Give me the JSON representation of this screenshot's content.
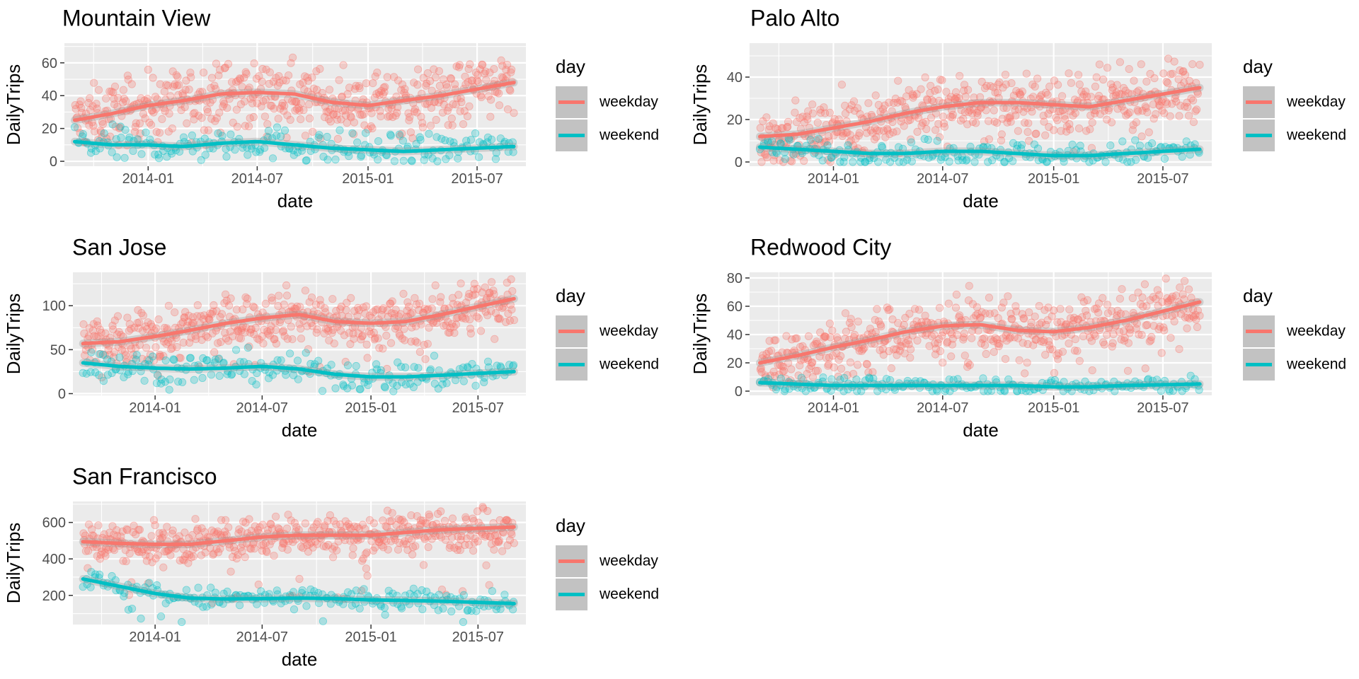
{
  "chart_data": [
    {
      "type": "scatter",
      "title": "Mountain View",
      "xlabel": "date",
      "ylabel": "DailyTrips",
      "xlim": [
        "2013-08-15",
        "2015-09-20"
      ],
      "ylim": [
        -3,
        72
      ],
      "x_ticks": [
        "2014-01",
        "2014-07",
        "2015-01",
        "2015-07"
      ],
      "y_ticks": [
        0,
        20,
        40,
        60
      ],
      "grid": true,
      "legend": {
        "title": "day",
        "position": "right",
        "entries": [
          "weekday",
          "weekend"
        ]
      },
      "series": [
        {
          "name": "weekday",
          "color": "#F8766D",
          "smooth": [
            [
              "2013-09-01",
              25
            ],
            [
              "2013-11-01",
              29
            ],
            [
              "2014-01-01",
              34
            ],
            [
              "2014-03-01",
              37
            ],
            [
              "2014-05-01",
              41
            ],
            [
              "2014-07-01",
              42
            ],
            [
              "2014-09-01",
              41
            ],
            [
              "2014-11-01",
              36
            ],
            [
              "2015-01-01",
              34
            ],
            [
              "2015-03-01",
              37
            ],
            [
              "2015-05-01",
              40
            ],
            [
              "2015-08-31",
              48
            ]
          ],
          "spread": 9,
          "max": 70
        },
        {
          "name": "weekend",
          "color": "#00BFC4",
          "smooth": [
            [
              "2013-09-01",
              12
            ],
            [
              "2013-11-01",
              10
            ],
            [
              "2014-01-01",
              10
            ],
            [
              "2014-03-01",
              9
            ],
            [
              "2014-05-01",
              11
            ],
            [
              "2014-07-01",
              12
            ],
            [
              "2014-09-01",
              10
            ],
            [
              "2014-11-01",
              8
            ],
            [
              "2015-01-01",
              7
            ],
            [
              "2015-03-01",
              6
            ],
            [
              "2015-05-01",
              7
            ],
            [
              "2015-08-31",
              9
            ]
          ],
          "spread": 5,
          "max": 27
        }
      ]
    },
    {
      "type": "scatter",
      "title": "Palo Alto",
      "xlabel": "date",
      "ylabel": "DailyTrips",
      "xlim": [
        "2013-08-15",
        "2015-09-20"
      ],
      "ylim": [
        -2,
        56
      ],
      "x_ticks": [
        "2014-01",
        "2014-07",
        "2015-01",
        "2015-07"
      ],
      "y_ticks": [
        0,
        20,
        40
      ],
      "grid": true,
      "legend": {
        "title": "day",
        "position": "right",
        "entries": [
          "weekday",
          "weekend"
        ]
      },
      "series": [
        {
          "name": "weekday",
          "color": "#F8766D",
          "smooth": [
            [
              "2013-09-01",
              12
            ],
            [
              "2013-11-01",
              13
            ],
            [
              "2014-01-01",
              16
            ],
            [
              "2014-03-01",
              19
            ],
            [
              "2014-05-01",
              23
            ],
            [
              "2014-07-01",
              26
            ],
            [
              "2014-09-01",
              28
            ],
            [
              "2014-11-01",
              28
            ],
            [
              "2015-01-01",
              27
            ],
            [
              "2015-03-01",
              26
            ],
            [
              "2015-05-01",
              29
            ],
            [
              "2015-08-31",
              35
            ]
          ],
          "spread": 7,
          "max": 54
        },
        {
          "name": "weekend",
          "color": "#00BFC4",
          "smooth": [
            [
              "2013-09-01",
              7
            ],
            [
              "2013-11-01",
              6
            ],
            [
              "2014-01-01",
              5
            ],
            [
              "2014-03-01",
              4
            ],
            [
              "2014-05-01",
              4
            ],
            [
              "2014-07-01",
              5
            ],
            [
              "2014-09-01",
              5
            ],
            [
              "2014-11-01",
              4
            ],
            [
              "2015-01-01",
              3
            ],
            [
              "2015-03-01",
              3
            ],
            [
              "2015-05-01",
              4
            ],
            [
              "2015-08-31",
              6
            ]
          ],
          "spread": 3,
          "max": 15
        }
      ]
    },
    {
      "type": "scatter",
      "title": "San Jose",
      "xlabel": "date",
      "ylabel": "DailyTrips",
      "xlim": [
        "2013-08-15",
        "2015-09-20"
      ],
      "ylim": [
        -2,
        138
      ],
      "x_ticks": [
        "2014-01",
        "2014-07",
        "2015-01",
        "2015-07"
      ],
      "y_ticks": [
        0,
        50,
        100
      ],
      "grid": true,
      "legend": {
        "title": "day",
        "position": "right",
        "entries": [
          "weekday",
          "weekend"
        ]
      },
      "series": [
        {
          "name": "weekday",
          "color": "#F8766D",
          "smooth": [
            [
              "2013-09-01",
              57
            ],
            [
              "2013-11-01",
              59
            ],
            [
              "2014-01-01",
              65
            ],
            [
              "2014-03-01",
              72
            ],
            [
              "2014-05-01",
              80
            ],
            [
              "2014-07-01",
              86
            ],
            [
              "2014-09-01",
              90
            ],
            [
              "2014-11-01",
              82
            ],
            [
              "2015-01-01",
              80
            ],
            [
              "2015-03-01",
              82
            ],
            [
              "2015-05-01",
              90
            ],
            [
              "2015-08-31",
              108
            ]
          ],
          "spread": 15,
          "max": 130
        },
        {
          "name": "weekend",
          "color": "#00BFC4",
          "smooth": [
            [
              "2013-09-01",
              35
            ],
            [
              "2013-11-01",
              31
            ],
            [
              "2014-01-01",
              29
            ],
            [
              "2014-03-01",
              28
            ],
            [
              "2014-05-01",
              29
            ],
            [
              "2014-07-01",
              31
            ],
            [
              "2014-09-01",
              28
            ],
            [
              "2014-11-01",
              22
            ],
            [
              "2015-01-01",
              19
            ],
            [
              "2015-03-01",
              19
            ],
            [
              "2015-05-01",
              21
            ],
            [
              "2015-08-31",
              25
            ]
          ],
          "spread": 9,
          "max": 70
        }
      ]
    },
    {
      "type": "scatter",
      "title": "Redwood City",
      "xlabel": "date",
      "ylabel": "DailyTrips",
      "xlim": [
        "2013-08-15",
        "2015-09-20"
      ],
      "ylim": [
        -3,
        84
      ],
      "x_ticks": [
        "2014-01",
        "2014-07",
        "2015-01",
        "2015-07"
      ],
      "y_ticks": [
        0,
        20,
        40,
        60,
        80
      ],
      "grid": true,
      "legend": {
        "title": "day",
        "position": "right",
        "entries": [
          "weekday",
          "weekend"
        ]
      },
      "series": [
        {
          "name": "weekday",
          "color": "#F8766D",
          "smooth": [
            [
              "2013-09-01",
              20
            ],
            [
              "2013-11-01",
              25
            ],
            [
              "2014-01-01",
              31
            ],
            [
              "2014-03-01",
              36
            ],
            [
              "2014-05-01",
              42
            ],
            [
              "2014-07-01",
              46
            ],
            [
              "2014-09-01",
              47
            ],
            [
              "2014-11-01",
              43
            ],
            [
              "2015-01-01",
              42
            ],
            [
              "2015-03-01",
              45
            ],
            [
              "2015-05-01",
              50
            ],
            [
              "2015-08-31",
              63
            ]
          ],
          "spread": 10,
          "max": 81
        },
        {
          "name": "weekend",
          "color": "#00BFC4",
          "smooth": [
            [
              "2013-09-01",
              6
            ],
            [
              "2013-11-01",
              5
            ],
            [
              "2014-01-01",
              4
            ],
            [
              "2014-03-01",
              4
            ],
            [
              "2014-05-01",
              4
            ],
            [
              "2014-07-01",
              4
            ],
            [
              "2014-09-01",
              4
            ],
            [
              "2014-11-01",
              4
            ],
            [
              "2015-01-01",
              3
            ],
            [
              "2015-03-01",
              3
            ],
            [
              "2015-05-01",
              4
            ],
            [
              "2015-08-31",
              5
            ]
          ],
          "spread": 3,
          "max": 18
        }
      ]
    },
    {
      "type": "scatter",
      "title": "San Francisco",
      "xlabel": "date",
      "ylabel": "DailyTrips",
      "xlim": [
        "2013-08-15",
        "2015-09-20"
      ],
      "ylim": [
        40,
        715
      ],
      "x_ticks": [
        "2014-01",
        "2014-07",
        "2015-01",
        "2015-07"
      ],
      "y_ticks": [
        200,
        400,
        600
      ],
      "grid": true,
      "legend": {
        "title": "day",
        "position": "right",
        "entries": [
          "weekday",
          "weekend"
        ]
      },
      "series": [
        {
          "name": "weekday",
          "color": "#F8766D",
          "smooth": [
            [
              "2013-09-01",
              495
            ],
            [
              "2013-11-01",
              485
            ],
            [
              "2014-01-01",
              480
            ],
            [
              "2014-03-01",
              480
            ],
            [
              "2014-05-01",
              500
            ],
            [
              "2014-07-01",
              520
            ],
            [
              "2014-09-01",
              530
            ],
            [
              "2014-11-01",
              530
            ],
            [
              "2015-01-01",
              530
            ],
            [
              "2015-03-01",
              545
            ],
            [
              "2015-05-01",
              560
            ],
            [
              "2015-08-31",
              575
            ]
          ],
          "spread": 55,
          "max": 700
        },
        {
          "name": "weekend",
          "color": "#00BFC4",
          "smooth": [
            [
              "2013-09-01",
              290
            ],
            [
              "2013-11-01",
              250
            ],
            [
              "2014-01-01",
              210
            ],
            [
              "2014-03-01",
              185
            ],
            [
              "2014-05-01",
              180
            ],
            [
              "2014-07-01",
              182
            ],
            [
              "2014-09-01",
              185
            ],
            [
              "2014-11-01",
              182
            ],
            [
              "2015-01-01",
              175
            ],
            [
              "2015-03-01",
              172
            ],
            [
              "2015-05-01",
              168
            ],
            [
              "2015-08-31",
              155
            ]
          ],
          "spread": 30,
          "max": 360
        }
      ]
    }
  ]
}
